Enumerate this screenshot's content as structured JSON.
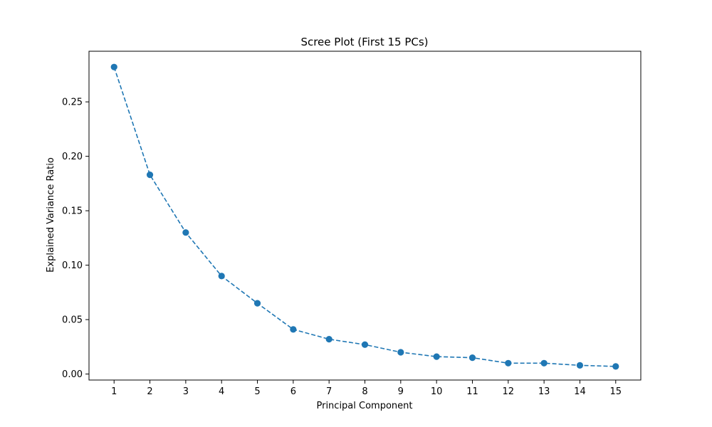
{
  "chart_data": {
    "type": "line",
    "title": "Scree Plot (First 15 PCs)",
    "xlabel": "Principal Component",
    "ylabel": "Explained Variance Ratio",
    "x": [
      1,
      2,
      3,
      4,
      5,
      6,
      7,
      8,
      9,
      10,
      11,
      12,
      13,
      14,
      15
    ],
    "series": [
      {
        "values": [
          0.282,
          0.183,
          0.13,
          0.09,
          0.065,
          0.041,
          0.032,
          0.027,
          0.02,
          0.016,
          0.015,
          0.01,
          0.01,
          0.008,
          0.007
        ],
        "color": "#1f77b4",
        "line_style": "dashed",
        "marker": "circle"
      }
    ],
    "xlim": [
      0.3,
      15.7
    ],
    "ylim": [
      -0.0055,
      0.2965
    ],
    "xticks": [
      1,
      2,
      3,
      4,
      5,
      6,
      7,
      8,
      9,
      10,
      11,
      12,
      13,
      14,
      15
    ],
    "xtick_labels": [
      "1",
      "2",
      "3",
      "4",
      "5",
      "6",
      "7",
      "8",
      "9",
      "10",
      "11",
      "12",
      "13",
      "14",
      "15"
    ],
    "yticks": [
      0.0,
      0.05,
      0.1,
      0.15,
      0.2,
      0.25
    ],
    "ytick_labels": [
      "0.00",
      "0.05",
      "0.10",
      "0.15",
      "0.20",
      "0.25"
    ],
    "grid": false,
    "legend": "none"
  }
}
